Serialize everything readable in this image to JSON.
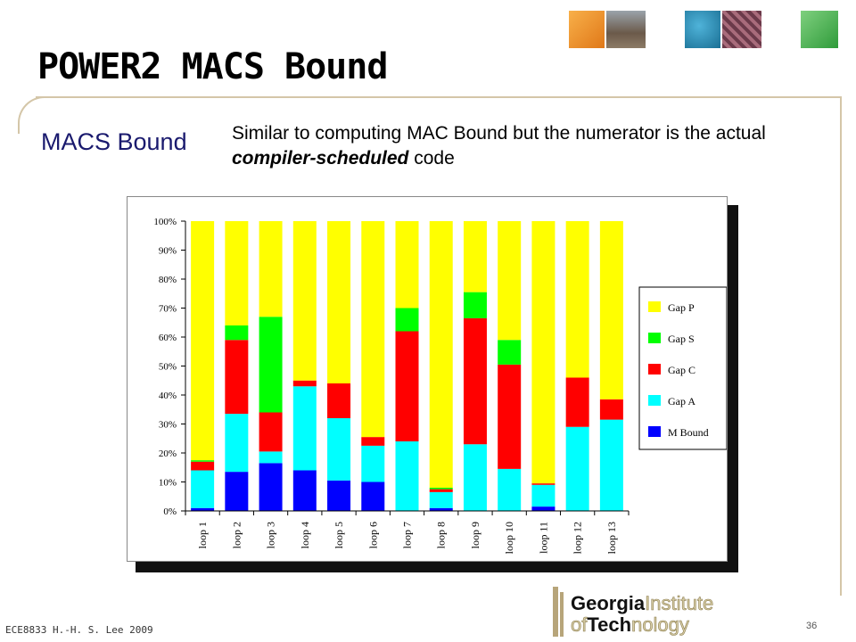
{
  "slide": {
    "title": "POWER2 MACS Bound",
    "heading": "MACS Bound",
    "description_part1": "Similar to computing MAC Bound but the numerator is the actual ",
    "description_emphasis": "compiler-scheduled",
    "description_part2": " code",
    "footer": "ECE8833 H.-H. S. Lee 2009",
    "page_number": "36",
    "logo": {
      "line1a": "Georgia",
      "line1b": "Institute",
      "line2a": "of",
      "line2b": "Tech",
      "line2c": "nology"
    }
  },
  "chart_data": {
    "type": "bar",
    "stacked": true,
    "title": "",
    "xlabel": "",
    "ylabel": "",
    "ylim": [
      0,
      100
    ],
    "yticks": [
      "0%",
      "10%",
      "20%",
      "30%",
      "40%",
      "50%",
      "60%",
      "70%",
      "80%",
      "90%",
      "100%"
    ],
    "categories": [
      "loop 1",
      "loop 2",
      "loop 3",
      "loop 4",
      "loop 5",
      "loop 6",
      "loop 7",
      "loop 8",
      "loop 9",
      "loop 10",
      "loop 11",
      "loop 12",
      "loop 13"
    ],
    "legend_position": "right",
    "series": [
      {
        "name": "M Bound",
        "color": "#0000ff",
        "values": [
          1,
          13.5,
          16.5,
          14,
          10.5,
          10,
          0,
          1,
          0,
          0,
          1.5,
          0,
          0
        ]
      },
      {
        "name": "Gap A",
        "color": "#00ffff",
        "values": [
          13,
          20,
          4,
          29,
          21.5,
          12.5,
          24,
          5.5,
          23,
          14.5,
          7.5,
          29,
          31.5
        ]
      },
      {
        "name": "Gap C",
        "color": "#ff0000",
        "values": [
          3,
          25.5,
          13.5,
          2,
          12,
          3,
          38,
          1,
          43.5,
          36,
          0.5,
          17,
          7
        ]
      },
      {
        "name": "Gap S",
        "color": "#00ff00",
        "values": [
          0.5,
          5,
          33,
          0,
          0,
          0,
          8,
          0.5,
          9,
          8.5,
          0,
          0,
          0
        ]
      },
      {
        "name": "Gap P",
        "color": "#ffff00",
        "values": [
          82.5,
          36,
          33,
          55,
          56,
          74.5,
          30,
          92,
          24.5,
          41,
          90.5,
          54,
          61.5
        ]
      }
    ]
  }
}
